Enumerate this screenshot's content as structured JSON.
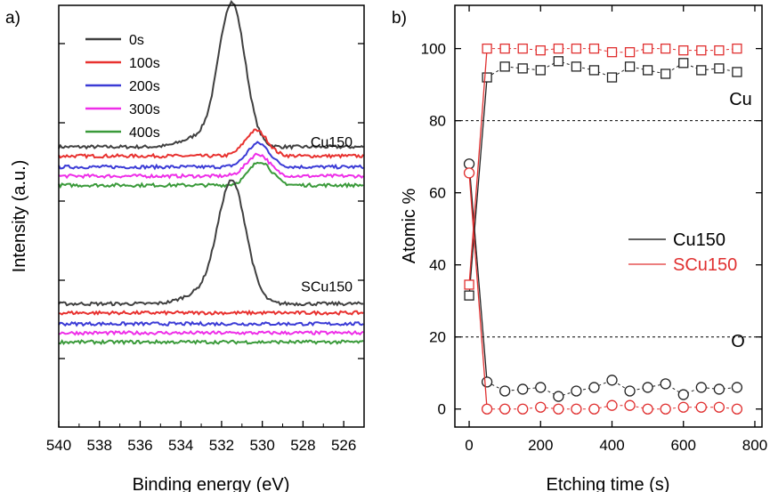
{
  "figure": {
    "panel_a_letter": "a)",
    "panel_b_letter": "b)"
  },
  "chart_data": [
    {
      "type": "line",
      "panel": "a)",
      "xlabel": "Binding energy (eV)",
      "ylabel": "Intensity (a.u.)",
      "xlim": [
        540,
        525
      ],
      "x_reversed": true,
      "xticks": [
        "540",
        "538",
        "536",
        "534",
        "532",
        "530",
        "528",
        "526"
      ],
      "y_tick_labels_shown": false,
      "legend_position": "top-left",
      "sample_labels": [
        "Cu150",
        "SCu150"
      ],
      "series": [
        {
          "name": "0s",
          "color": "#404040",
          "group": "Cu150",
          "baseline": 0.38,
          "peak_center": 531.5,
          "peak_height": 0.79,
          "peak_width": 0.65
        },
        {
          "name": "100s",
          "color": "#e8312f",
          "group": "Cu150",
          "baseline": 0.33,
          "peak_center": 530.3,
          "peak_height": 0.14,
          "peak_width": 0.55
        },
        {
          "name": "200s",
          "color": "#3b3bd6",
          "group": "Cu150",
          "baseline": 0.27,
          "peak_center": 530.2,
          "peak_height": 0.13,
          "peak_width": 0.55
        },
        {
          "name": "300s",
          "color": "#ee2ee8",
          "group": "Cu150",
          "baseline": 0.22,
          "peak_center": 530.2,
          "peak_height": 0.12,
          "peak_width": 0.55
        },
        {
          "name": "400s",
          "color": "#3a9a3a",
          "group": "Cu150",
          "baseline": 0.17,
          "peak_center": 530.1,
          "peak_height": 0.13,
          "peak_width": 0.55
        },
        {
          "name": "0s",
          "color": "#404040",
          "group": "SCu150",
          "baseline": -0.48,
          "peak_center": 531.5,
          "peak_height": 0.67,
          "peak_width": 0.7
        },
        {
          "name": "100s",
          "color": "#e8312f",
          "group": "SCu150",
          "baseline": -0.53,
          "peak_center": 530.5,
          "peak_height": 0.0,
          "peak_width": 0.6
        },
        {
          "name": "200s",
          "color": "#3b3bd6",
          "group": "SCu150",
          "baseline": -0.59,
          "peak_center": 530.5,
          "peak_height": 0.0,
          "peak_width": 0.6
        },
        {
          "name": "300s",
          "color": "#ee2ee8",
          "group": "SCu150",
          "baseline": -0.64,
          "peak_center": 530.5,
          "peak_height": 0.0,
          "peak_width": 0.6
        },
        {
          "name": "400s",
          "color": "#3a9a3a",
          "group": "SCu150",
          "baseline": -0.69,
          "peak_center": 530.5,
          "peak_height": 0.0,
          "peak_width": 0.6
        }
      ]
    },
    {
      "type": "scatter",
      "panel": "b)",
      "xlabel": "Etching time (s)",
      "ylabel": "Atomic %",
      "xlim": [
        -40,
        820
      ],
      "ylim": [
        -5,
        112
      ],
      "xticks": [
        0,
        200,
        400,
        600,
        800
      ],
      "yticks": [
        0,
        20,
        40,
        60,
        80,
        100
      ],
      "reference_lines_y": [
        80,
        20
      ],
      "region_labels": [
        "Cu",
        "O"
      ],
      "legend_position": "right",
      "x": [
        0,
        50,
        100,
        150,
        200,
        250,
        300,
        350,
        400,
        450,
        500,
        550,
        600,
        650,
        700,
        750
      ],
      "series": [
        {
          "name": "Cu150",
          "element": "Cu",
          "marker": "square",
          "color": "#222222",
          "values": [
            31.5,
            92,
            95,
            94.5,
            94,
            96.5,
            95,
            94,
            92,
            95,
            94,
            93,
            96,
            94,
            94.5,
            93.5
          ]
        },
        {
          "name": "Cu150",
          "element": "O",
          "marker": "circle",
          "color": "#222222",
          "values": [
            68,
            7.5,
            5,
            5.5,
            6,
            3.5,
            5,
            6,
            8,
            5,
            6,
            7,
            4,
            6,
            5.5,
            6
          ]
        },
        {
          "name": "SCu150",
          "element": "Cu",
          "marker": "square",
          "color": "#e03030",
          "values": [
            34.5,
            100,
            100,
            100,
            99.5,
            100,
            100,
            100,
            99,
            99,
            100,
            100,
            99.5,
            99.5,
            99.5,
            100
          ]
        },
        {
          "name": "SCu150",
          "element": "O",
          "marker": "circle",
          "color": "#e03030",
          "values": [
            65.5,
            0,
            0,
            0,
            0.5,
            0,
            0,
            0,
            1,
            1,
            0,
            0,
            0.5,
            0.5,
            0.5,
            0
          ]
        }
      ],
      "legend": [
        {
          "label": "Cu150",
          "color": "#000000"
        },
        {
          "label": "SCu150",
          "color": "#e03030"
        }
      ]
    }
  ]
}
